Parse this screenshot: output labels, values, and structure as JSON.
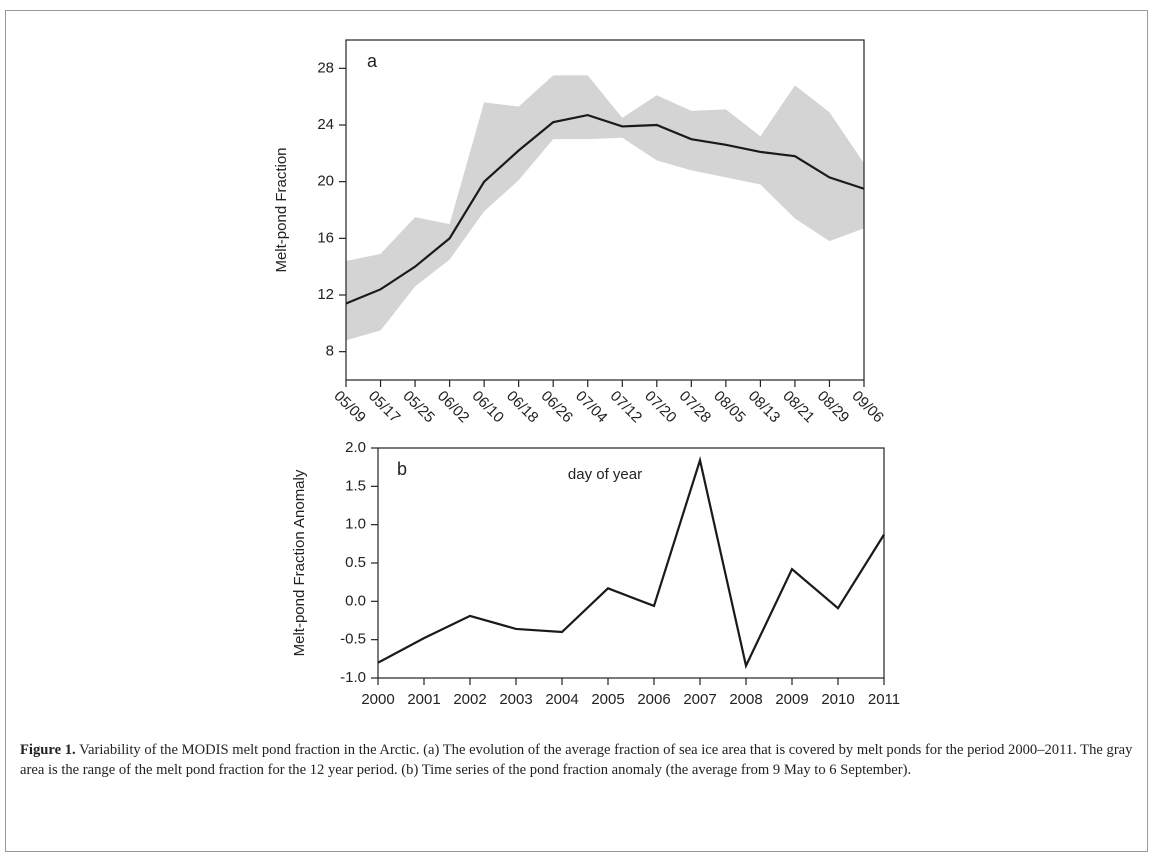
{
  "chart_data": [
    {
      "type": "line",
      "annotation": "a",
      "ylabel": "Melt-pond Fraction",
      "xlabel": "day of year",
      "categories": [
        "05/09",
        "05/17",
        "05/25",
        "06/02",
        "06/10",
        "06/18",
        "06/26",
        "07/04",
        "07/12",
        "07/20",
        "07/28",
        "08/05",
        "08/13",
        "08/21",
        "08/29",
        "09/06"
      ],
      "values": [
        11.4,
        12.4,
        14.0,
        16.0,
        20.0,
        22.2,
        24.2,
        24.7,
        23.9,
        24.0,
        23.0,
        22.6,
        22.1,
        21.8,
        20.3,
        19.5
      ],
      "range_high": [
        14.4,
        14.9,
        17.5,
        17.0,
        25.6,
        25.3,
        27.5,
        27.5,
        24.5,
        26.1,
        25.0,
        25.1,
        23.2,
        26.8,
        24.9,
        21.3
      ],
      "range_low": [
        8.8,
        9.5,
        12.6,
        14.5,
        17.9,
        20.1,
        23.0,
        23.0,
        23.1,
        21.5,
        20.8,
        20.3,
        19.8,
        17.4,
        15.8,
        16.7
      ],
      "color": "#1a1a1a",
      "band_color": "#d4d4d4",
      "ylim": [
        6,
        30
      ],
      "yticks": [
        8,
        12,
        16,
        20,
        24,
        28
      ]
    },
    {
      "type": "line",
      "annotation": "b",
      "ylabel": "Melt-pond Fraction Anomaly",
      "x": [
        2000,
        2001,
        2002,
        2003,
        2004,
        2005,
        2006,
        2007,
        2008,
        2009,
        2010,
        2011
      ],
      "values": [
        -0.8,
        -0.48,
        -0.19,
        -0.36,
        -0.4,
        0.17,
        -0.06,
        1.84,
        -0.84,
        0.42,
        -0.09,
        0.87
      ],
      "color": "#1a1a1a",
      "xlim": [
        2000,
        2011
      ],
      "xticks": [
        2000,
        2001,
        2002,
        2003,
        2004,
        2005,
        2006,
        2007,
        2008,
        2009,
        2010,
        2011
      ],
      "ylim": [
        -1,
        2
      ],
      "yticks": [
        {
          "value": 2,
          "label": "2.0"
        },
        1.5,
        {
          "value": 1,
          "label": "1.0"
        },
        0.5,
        {
          "value": 0,
          "label": "0.0"
        },
        -0.5,
        {
          "value": -1,
          "label": "-1.0"
        }
      ]
    }
  ],
  "caption": {
    "label": "Figure 1.",
    "text": "Variability of the MODIS melt pond fraction in the Arctic. (a) The evolution of the average fraction of sea ice area that is covered by melt ponds for the period 2000–2011. The gray area is the range of the melt pond fraction for the 12 year period. (b) Time series of the pond fraction anomaly (the average from 9 May to 6 September)."
  }
}
